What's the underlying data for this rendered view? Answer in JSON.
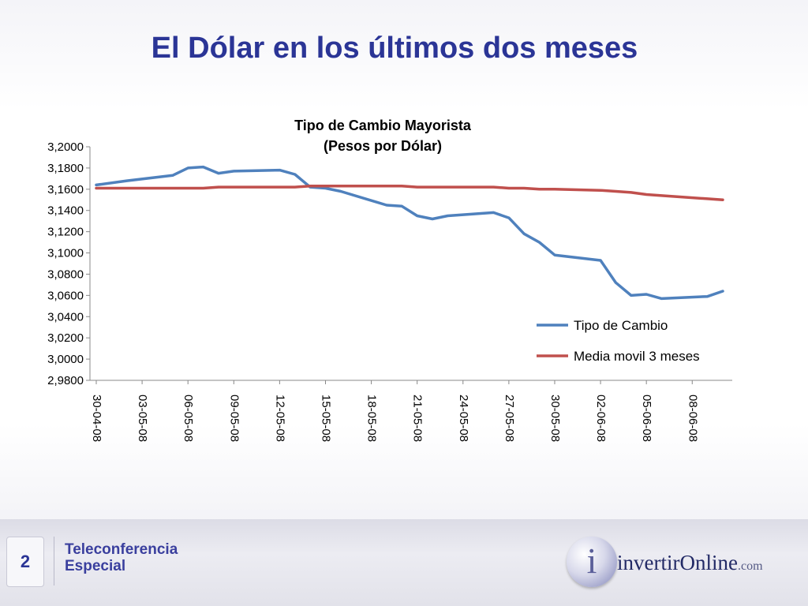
{
  "slide": {
    "title": "El Dólar en los últimos dos meses",
    "page_number": "2",
    "footer_line1": "Teleconferencia",
    "footer_line2": "Especial",
    "logo_mark": "i",
    "logo_main": "invertirOnline",
    "logo_tld": ".com"
  },
  "chart_data": {
    "type": "line",
    "title": "Tipo de Cambio Mayorista",
    "subtitle": "(Pesos por Dólar)",
    "ylim": [
      2.98,
      3.2
    ],
    "ytick_values": [
      2.98,
      3.0,
      3.02,
      3.04,
      3.06,
      3.08,
      3.1,
      3.12,
      3.14,
      3.16,
      3.18,
      3.2
    ],
    "ytick_labels": [
      "2,9800",
      "3,0000",
      "3,0200",
      "3,0400",
      "3,0600",
      "3,0800",
      "3,1000",
      "3,1200",
      "3,1400",
      "3,1600",
      "3,1800",
      "3,2000"
    ],
    "x_dates": [
      "30-04-08",
      "02-05-08",
      "05-05-08",
      "06-05-08",
      "07-05-08",
      "08-05-08",
      "09-05-08",
      "12-05-08",
      "13-05-08",
      "14-05-08",
      "15-05-08",
      "16-05-08",
      "19-05-08",
      "20-05-08",
      "21-05-08",
      "22-05-08",
      "23-05-08",
      "26-05-08",
      "27-05-08",
      "28-05-08",
      "29-05-08",
      "30-05-08",
      "02-06-08",
      "03-06-08",
      "04-06-08",
      "05-06-08",
      "06-06-08",
      "09-06-08",
      "10-06-08"
    ],
    "x_axis_start": "30-04-08",
    "x_axis_end": "10-06-08",
    "x_tick_labels": [
      "30-04-08",
      "03-05-08",
      "06-05-08",
      "09-05-08",
      "12-05-08",
      "15-05-08",
      "18-05-08",
      "21-05-08",
      "24-05-08",
      "27-05-08",
      "30-05-08",
      "02-06-08",
      "05-06-08",
      "08-06-08"
    ],
    "series": [
      {
        "name": "Tipo de Cambio",
        "color": "#4f81bd",
        "values": [
          3.164,
          3.168,
          3.173,
          3.18,
          3.181,
          3.175,
          3.177,
          3.178,
          3.174,
          3.162,
          3.161,
          3.158,
          3.145,
          3.144,
          3.135,
          3.132,
          3.135,
          3.138,
          3.133,
          3.118,
          3.11,
          3.098,
          3.093,
          3.072,
          3.06,
          3.061,
          3.057,
          3.059,
          3.064
        ]
      },
      {
        "name": "Media movil 3 meses",
        "color": "#c0504d",
        "values": [
          3.161,
          3.161,
          3.161,
          3.161,
          3.161,
          3.162,
          3.162,
          3.162,
          3.162,
          3.163,
          3.163,
          3.163,
          3.163,
          3.163,
          3.162,
          3.162,
          3.162,
          3.162,
          3.161,
          3.161,
          3.16,
          3.16,
          3.159,
          3.158,
          3.157,
          3.155,
          3.154,
          3.151,
          3.15
        ]
      }
    ],
    "legend_position": "right-bottom",
    "grid": false
  }
}
